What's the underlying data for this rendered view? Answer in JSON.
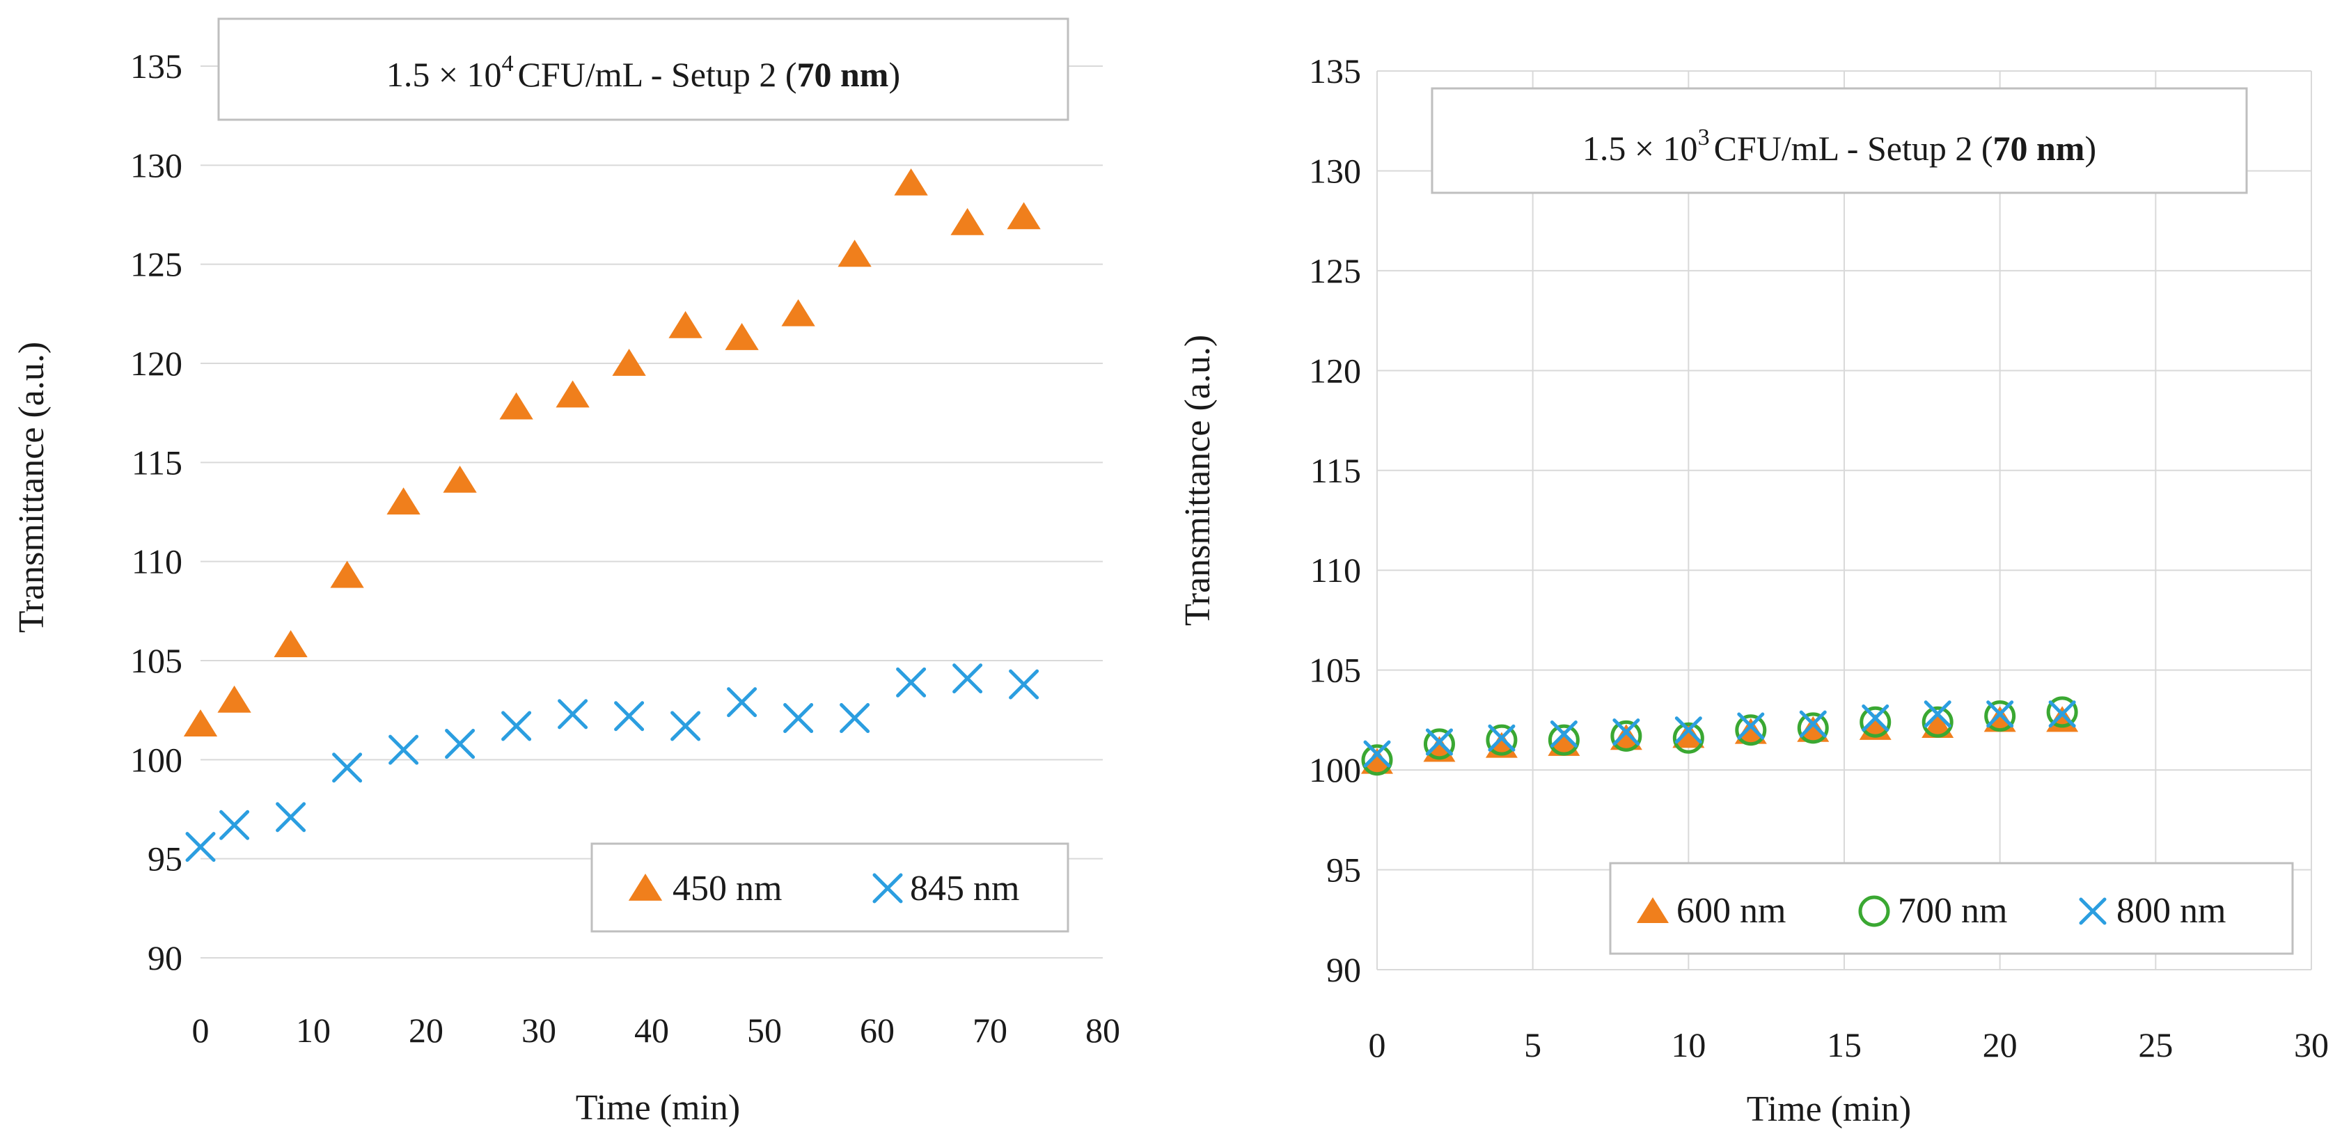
{
  "colors": {
    "orange": "#f07f1c",
    "green": "#3aa832",
    "blue": "#2b9ee0"
  },
  "chart_data": [
    {
      "type": "scatter",
      "title": {
        "prefix": "1.5 × 10",
        "exponent": "4",
        "unit": "CFU/mL - Setup 2 (",
        "bold": "70 nm",
        "suffix": ")"
      },
      "xlabel": "Time (min)",
      "ylabel": "Transmittance (a.u.)",
      "xlim": [
        0,
        80
      ],
      "ylim": [
        90,
        135
      ],
      "xticks": [
        0,
        10,
        20,
        30,
        40,
        50,
        60,
        70,
        80
      ],
      "yticks": [
        90,
        95,
        100,
        105,
        110,
        115,
        120,
        125,
        130,
        135
      ],
      "x_grid": false,
      "legend_position": "bottom-right",
      "series": [
        {
          "name": "450 nm",
          "marker": "triangle",
          "color_key": "orange",
          "x": [
            0,
            3,
            8,
            13,
            18,
            23,
            28,
            33,
            38,
            43,
            48,
            53,
            58,
            63,
            68,
            73
          ],
          "y": [
            101.8,
            103.0,
            105.8,
            109.3,
            113.0,
            114.1,
            117.8,
            118.4,
            120.0,
            121.9,
            121.3,
            122.5,
            125.5,
            129.1,
            127.1,
            127.4
          ]
        },
        {
          "name": "845 nm",
          "marker": "x",
          "color_key": "blue",
          "x": [
            0,
            3,
            8,
            13,
            18,
            23,
            28,
            33,
            38,
            43,
            48,
            53,
            58,
            63,
            68,
            73
          ],
          "y": [
            95.6,
            96.7,
            97.1,
            99.6,
            100.5,
            100.8,
            101.7,
            102.3,
            102.2,
            101.7,
            102.9,
            102.1,
            102.1,
            103.9,
            104.1,
            103.8
          ]
        }
      ]
    },
    {
      "type": "scatter",
      "title": {
        "prefix": "1.5 × 10",
        "exponent": "3",
        "unit": "CFU/mL - Setup 2 (",
        "bold": "70 nm",
        "suffix": ")"
      },
      "xlabel": "Time (min)",
      "ylabel": "Transmittance (a.u.)",
      "xlim": [
        0,
        30
      ],
      "ylim": [
        90,
        135
      ],
      "xticks": [
        0,
        5,
        10,
        15,
        20,
        25,
        30
      ],
      "yticks": [
        90,
        95,
        100,
        105,
        110,
        115,
        120,
        125,
        130,
        135
      ],
      "x_grid": true,
      "legend_position": "bottom-right",
      "series": [
        {
          "name": "600 nm",
          "marker": "triangle",
          "color_key": "orange",
          "x": [
            0,
            2,
            4,
            6,
            8,
            10,
            12,
            14,
            16,
            18,
            20,
            22
          ],
          "y": [
            100.4,
            101.0,
            101.2,
            101.3,
            101.6,
            101.7,
            101.9,
            102.0,
            102.1,
            102.2,
            102.5,
            102.5
          ]
        },
        {
          "name": "700 nm",
          "marker": "circle",
          "color_key": "green",
          "x": [
            0,
            2,
            4,
            6,
            8,
            10,
            12,
            14,
            16,
            18,
            20,
            22
          ],
          "y": [
            100.5,
            101.3,
            101.5,
            101.5,
            101.7,
            101.6,
            102.0,
            102.1,
            102.4,
            102.4,
            102.7,
            102.9
          ]
        },
        {
          "name": "800 nm",
          "marker": "x",
          "color_key": "blue",
          "x": [
            0,
            2,
            4,
            6,
            8,
            10,
            12,
            14,
            16,
            18,
            20,
            22
          ],
          "y": [
            100.8,
            101.4,
            101.6,
            101.8,
            101.9,
            102.0,
            102.2,
            102.3,
            102.6,
            102.8,
            102.8,
            102.8
          ]
        }
      ]
    }
  ]
}
